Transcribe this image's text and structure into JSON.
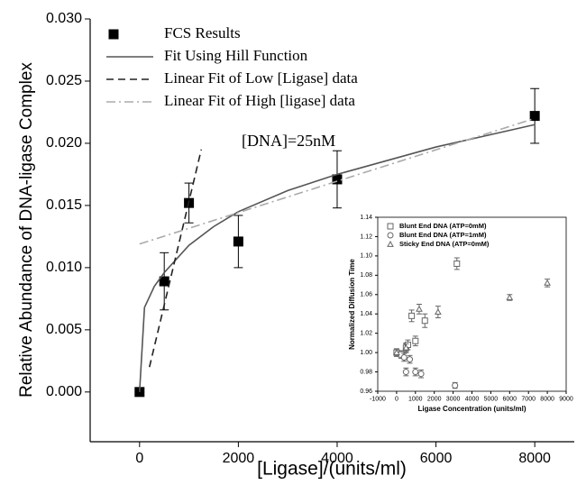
{
  "chart_data": [
    {
      "type": "scatter",
      "xlabel": "[Ligase]/(units/ml)",
      "ylabel": "Relative Abundance of DNA-ligase Complex",
      "annotation": "[DNA]=25nM",
      "xlim": [
        -1000,
        8800
      ],
      "xticks": [
        0,
        2000,
        4000,
        6000,
        8000
      ],
      "ylim": [
        -0.004,
        0.03
      ],
      "yticks": [
        {
          "value": 0,
          "label": "0.000"
        },
        {
          "value": 0.005,
          "label": "0.005"
        },
        {
          "value": 0.01,
          "label": "0.010"
        },
        {
          "value": 0.015,
          "label": "0.015"
        },
        {
          "value": 0.02,
          "label": "0.020"
        },
        {
          "value": 0.025,
          "label": "0.025"
        },
        {
          "value": 0.03,
          "label": "0.030"
        }
      ],
      "legend": "upper left",
      "series": [
        {
          "name": "FCS Results",
          "kind": "marker",
          "marker": "square",
          "filled": true,
          "color": "#000000",
          "x": [
            0,
            500,
            1000,
            2000,
            4000,
            8000
          ],
          "values": [
            0,
            0.0089,
            0.0152,
            0.0121,
            0.0171,
            0.0222
          ],
          "errors": [
            0.0001,
            0.0023,
            0.0016,
            0.0021,
            0.0023,
            0.0022
          ]
        },
        {
          "name": "Fit Using Hill Function",
          "kind": "line",
          "linestyle": "solid",
          "color": "#555555",
          "x": [
            0,
            100,
            300,
            500,
            1000,
            1500,
            2000,
            3000,
            4000,
            6000,
            8000
          ],
          "values": [
            0,
            0.0068,
            0.0085,
            0.0096,
            0.0118,
            0.0133,
            0.0145,
            0.0162,
            0.0175,
            0.0197,
            0.0215
          ]
        },
        {
          "name": "Linear Fit of Low [Ligase] data",
          "kind": "line",
          "linestyle": "dashed",
          "color": "#222222",
          "x": [
            200,
            1250
          ],
          "values": [
            0.002,
            0.0195
          ]
        },
        {
          "name": "Linear Fit of High [ligase] data",
          "kind": "line",
          "linestyle": "dashdot",
          "color": "#aaaaaa",
          "x": [
            0,
            8000
          ],
          "values": [
            0.0119,
            0.022
          ]
        }
      ]
    },
    {
      "type": "scatter",
      "xlabel": "Ligase Concentration (units/ml)",
      "ylabel": "Normalized Diffusion Time",
      "xlim": [
        -1000,
        9000
      ],
      "xticks": [
        -1000,
        0,
        1000,
        2000,
        3000,
        4000,
        5000,
        6000,
        7000,
        8000,
        9000
      ],
      "ylim": [
        0.96,
        1.14
      ],
      "yticks": [
        0.96,
        0.98,
        {
          "value": 1,
          "label": "1.00"
        },
        1.02,
        1.04,
        1.06,
        1.08,
        {
          "value": 1.1,
          "label": "1.10"
        },
        1.12,
        1.14
      ],
      "legend": "upper left",
      "series": [
        {
          "name": "Blunt End DNA (ATP=0mM)",
          "kind": "marker",
          "marker": "square",
          "filled": false,
          "color": "#666666",
          "x": [
            0,
            250,
            500,
            600,
            800,
            1000,
            1500,
            3200
          ],
          "values": [
            1.0,
            0.998,
            1.005,
            1.008,
            1.038,
            1.012,
            1.033,
            1.092
          ],
          "errors": [
            0.004,
            0.004,
            0.005,
            0.005,
            0.006,
            0.005,
            0.007,
            0.006
          ]
        },
        {
          "name": "Blunt End DNA (ATP=1mM)",
          "kind": "marker",
          "marker": "circle",
          "filled": false,
          "color": "#666666",
          "x": [
            400,
            500,
            700,
            1000,
            1300,
            3100
          ],
          "values": [
            0.995,
            0.98,
            0.993,
            0.98,
            0.978,
            0.966
          ],
          "errors": [
            0.004,
            0.004,
            0.004,
            0.004,
            0.004,
            0.003
          ]
        },
        {
          "name": "Sticky End DNA (ATP=0mM)",
          "kind": "marker",
          "marker": "triangle",
          "filled": false,
          "color": "#666666",
          "x": [
            0,
            500,
            1200,
            2200,
            6000,
            8000
          ],
          "values": [
            1.0,
            1.005,
            1.045,
            1.042,
            1.057,
            1.072
          ],
          "errors": [
            0.003,
            0.004,
            0.005,
            0.006,
            0.003,
            0.004
          ]
        }
      ]
    }
  ]
}
